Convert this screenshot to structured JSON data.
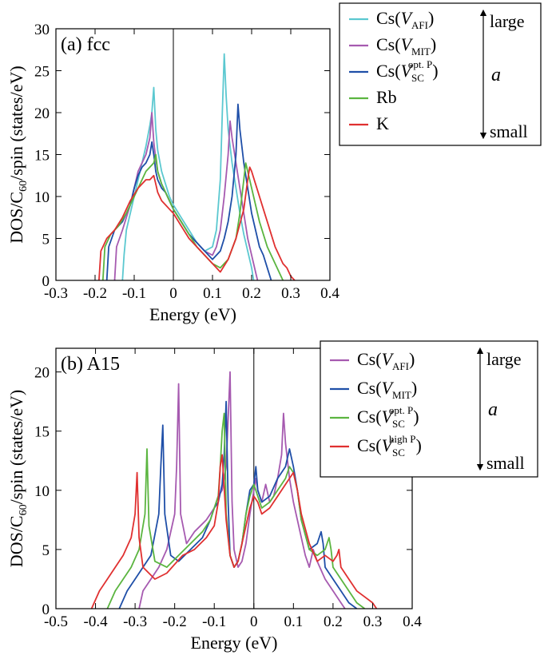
{
  "chart_data": [
    {
      "type": "line",
      "panel_label": "(a) fcc",
      "xlabel": "Energy (eV)",
      "ylabel": "DOS/C60/spin (states/eV)",
      "xlim": [
        -0.3,
        0.4
      ],
      "ylim": [
        0,
        30
      ],
      "x_ticks": [
        "-0.3",
        "-0.2",
        "-0.1",
        "0",
        "0.1",
        "0.2",
        "0.3",
        "0.4"
      ],
      "y_ticks": [
        "0",
        "5",
        "10",
        "15",
        "20",
        "25",
        "30"
      ],
      "legend_position": "top-right",
      "legend_arrow_top": "large",
      "legend_arrow_var": "a",
      "legend_arrow_bottom": "small",
      "series": [
        {
          "name": "Cs(V_AFI)",
          "label_main": "Cs(",
          "label_var": "V",
          "label_sub": "AFI",
          "label_sup": "",
          "label_close": ")",
          "color": "#5bc8d0",
          "x": [
            -0.13,
            -0.126,
            -0.12,
            -0.11,
            -0.1,
            -0.09,
            -0.08,
            -0.07,
            -0.06,
            -0.055,
            -0.05,
            -0.045,
            -0.04,
            -0.03,
            -0.02,
            -0.01,
            0,
            0.02,
            0.04,
            0.06,
            0.08,
            0.1,
            0.11,
            0.12,
            0.125,
            0.13,
            0.135,
            0.14,
            0.15,
            0.16,
            0.17,
            0.18,
            0.19,
            0.2,
            0.205
          ],
          "y": [
            0,
            3,
            6,
            8,
            10,
            12,
            14,
            16,
            18.5,
            20,
            23,
            18,
            15.5,
            13,
            11.5,
            10,
            9,
            7.5,
            6,
            4.5,
            3.5,
            4,
            6,
            12,
            20,
            27,
            22,
            18,
            14,
            11,
            8,
            5.5,
            3.5,
            1.5,
            0
          ]
        },
        {
          "name": "Cs(V_MIT)",
          "label_main": "Cs(",
          "label_var": "V",
          "label_sub": "MIT",
          "label_sup": "",
          "label_close": ")",
          "color": "#a65ab0",
          "x": [
            -0.15,
            -0.145,
            -0.13,
            -0.11,
            -0.1,
            -0.09,
            -0.08,
            -0.07,
            -0.06,
            -0.055,
            -0.05,
            -0.045,
            -0.04,
            -0.03,
            -0.02,
            -0.01,
            0,
            0.02,
            0.04,
            0.06,
            0.08,
            0.1,
            0.11,
            0.12,
            0.13,
            0.14,
            0.145,
            0.15,
            0.16,
            0.17,
            0.18,
            0.19,
            0.2,
            0.21,
            0.215
          ],
          "y": [
            0,
            4,
            6,
            9,
            11,
            13,
            14,
            15,
            17,
            20,
            16.5,
            14.5,
            13,
            11.5,
            10.5,
            9.5,
            8.5,
            7,
            5.5,
            4.5,
            3.5,
            3,
            4,
            6,
            10,
            15,
            19,
            17,
            14,
            11,
            8,
            5,
            3,
            1,
            0
          ]
        },
        {
          "name": "Cs(V_SC^opt.P)",
          "label_main": "Cs(",
          "label_var": "V",
          "label_sub": "SC",
          "label_sup": "opt. P",
          "label_close": ")",
          "color": "#1f4fa8",
          "x": [
            -0.17,
            -0.165,
            -0.15,
            -0.13,
            -0.11,
            -0.1,
            -0.09,
            -0.08,
            -0.07,
            -0.06,
            -0.055,
            -0.05,
            -0.045,
            -0.04,
            -0.03,
            -0.02,
            -0.01,
            0,
            0.02,
            0.04,
            0.06,
            0.08,
            0.1,
            0.12,
            0.13,
            0.14,
            0.15,
            0.16,
            0.165,
            0.17,
            0.18,
            0.19,
            0.2,
            0.21,
            0.22,
            0.23,
            0.24,
            0.25
          ],
          "y": [
            0,
            4,
            6,
            7,
            9,
            11,
            12.5,
            13.5,
            14,
            15,
            16.5,
            15,
            13,
            12,
            11,
            10.5,
            9.5,
            8.5,
            7,
            5.5,
            4.5,
            3.5,
            2.5,
            3.5,
            5,
            7,
            10,
            15,
            21,
            18,
            14,
            11,
            8,
            6,
            4,
            3,
            1.5,
            0
          ]
        },
        {
          "name": "Rb",
          "label_main": "Rb",
          "label_var": "",
          "label_sub": "",
          "label_sup": "",
          "label_close": "",
          "color": "#5bb540",
          "x": [
            -0.18,
            -0.175,
            -0.16,
            -0.14,
            -0.12,
            -0.1,
            -0.08,
            -0.07,
            -0.06,
            -0.05,
            -0.045,
            -0.04,
            -0.03,
            -0.02,
            -0.01,
            0,
            0.02,
            0.04,
            0.06,
            0.08,
            0.1,
            0.12,
            0.14,
            0.16,
            0.17,
            0.18,
            0.185,
            0.19,
            0.2,
            0.21,
            0.22,
            0.23,
            0.24,
            0.25,
            0.26,
            0.27,
            0.28
          ],
          "y": [
            0,
            4,
            5.5,
            6.5,
            8,
            10,
            12,
            13,
            13.5,
            14,
            15,
            13,
            11.5,
            10.5,
            9.5,
            8.5,
            7,
            5.5,
            4,
            3,
            2,
            1.5,
            2.5,
            5,
            8,
            12,
            14,
            13,
            11,
            9,
            7,
            5.5,
            4,
            3,
            2,
            1,
            0
          ]
        },
        {
          "name": "K",
          "label_main": "K",
          "label_var": "",
          "label_sub": "",
          "label_sup": "",
          "label_close": "",
          "color": "#e03030",
          "x": [
            -0.19,
            -0.185,
            -0.17,
            -0.15,
            -0.13,
            -0.11,
            -0.09,
            -0.08,
            -0.07,
            -0.06,
            -0.05,
            -0.045,
            -0.04,
            -0.03,
            -0.02,
            -0.01,
            0,
            0.02,
            0.04,
            0.06,
            0.08,
            0.1,
            0.12,
            0.14,
            0.16,
            0.18,
            0.19,
            0.195,
            0.2,
            0.21,
            0.22,
            0.23,
            0.24,
            0.25,
            0.26,
            0.27,
            0.28,
            0.29,
            0.3,
            0.31
          ],
          "y": [
            0,
            3.5,
            5,
            6,
            7.5,
            9.5,
            11,
            11.5,
            12,
            12,
            12.5,
            11.5,
            10.5,
            9.5,
            9,
            8.5,
            8,
            6.5,
            5,
            4,
            3,
            2,
            1,
            2.5,
            5,
            8.5,
            12,
            13.5,
            13,
            11.5,
            10,
            8.5,
            7,
            5.5,
            4,
            3,
            2,
            1.5,
            0.5,
            0
          ]
        }
      ]
    },
    {
      "type": "line",
      "panel_label": "(b) A15",
      "xlabel": "Energy (eV)",
      "ylabel": "DOS/C60/spin (states/eV)",
      "xlim": [
        -0.5,
        0.4
      ],
      "ylim": [
        0,
        22
      ],
      "x_ticks": [
        "-0.5",
        "-0.4",
        "-0.3",
        "-0.2",
        "-0.1",
        "0",
        "0.1",
        "0.2",
        "0.3",
        "0.4"
      ],
      "y_ticks": [
        "0",
        "5",
        "10",
        "15",
        "20"
      ],
      "legend_position": "top-right",
      "legend_arrow_top": "large",
      "legend_arrow_var": "a",
      "legend_arrow_bottom": "small",
      "series": [
        {
          "name": "Cs(V_AFI)",
          "label_main": "Cs(",
          "label_var": "V",
          "label_sub": "AFI",
          "label_sup": "",
          "label_close": ")",
          "color": "#a65ab0",
          "x": [
            -0.29,
            -0.28,
            -0.26,
            -0.24,
            -0.22,
            -0.2,
            -0.195,
            -0.19,
            -0.185,
            -0.17,
            -0.15,
            -0.12,
            -0.1,
            -0.09,
            -0.08,
            -0.07,
            -0.065,
            -0.06,
            -0.055,
            -0.05,
            -0.04,
            -0.03,
            -0.02,
            -0.01,
            0,
            0.005,
            0.01,
            0.02,
            0.03,
            0.04,
            0.05,
            0.06,
            0.07,
            0.075,
            0.08,
            0.09,
            0.1,
            0.11,
            0.12,
            0.13,
            0.14,
            0.15,
            0.16,
            0.18,
            0.2,
            0.22,
            0.23
          ],
          "y": [
            0,
            1.5,
            2.5,
            3.5,
            5,
            8,
            12,
            19,
            8,
            5.5,
            6.5,
            7.5,
            8.5,
            9.5,
            10,
            12,
            16,
            20,
            9,
            5,
            3.5,
            4,
            5.5,
            8,
            10,
            11,
            10,
            9,
            10.5,
            9,
            9.5,
            11,
            13,
            16.5,
            14,
            11,
            9,
            7.5,
            6,
            4.5,
            3.5,
            5,
            4,
            2.5,
            1.5,
            0.5,
            0
          ]
        },
        {
          "name": "Cs(V_MIT)",
          "label_main": "Cs(",
          "label_var": "V",
          "label_sub": "MIT",
          "label_sup": "",
          "label_close": ")",
          "color": "#1f4fa8",
          "x": [
            -0.34,
            -0.32,
            -0.3,
            -0.28,
            -0.26,
            -0.24,
            -0.235,
            -0.23,
            -0.225,
            -0.21,
            -0.19,
            -0.16,
            -0.13,
            -0.11,
            -0.1,
            -0.09,
            -0.08,
            -0.075,
            -0.07,
            -0.065,
            -0.06,
            -0.05,
            -0.04,
            -0.03,
            -0.02,
            -0.01,
            0,
            0.005,
            0.01,
            0.02,
            0.04,
            0.06,
            0.08,
            0.09,
            0.1,
            0.11,
            0.12,
            0.14,
            0.16,
            0.17,
            0.175,
            0.18,
            0.2,
            0.22,
            0.24,
            0.26
          ],
          "y": [
            0,
            1.5,
            2.5,
            3.5,
            4.5,
            8,
            12,
            15.5,
            8,
            4.5,
            4,
            5,
            6,
            7.5,
            8.5,
            9,
            10.5,
            13,
            17.5,
            9,
            4.5,
            3.5,
            4,
            5.5,
            8,
            10,
            10.5,
            12,
            10,
            9,
            9.5,
            11,
            12,
            13.5,
            12,
            10,
            7.5,
            5,
            5.5,
            6.5,
            5.5,
            3.5,
            2.5,
            1.5,
            0.5,
            0
          ]
        },
        {
          "name": "Cs(V_SC^opt.P)",
          "label_main": "Cs(",
          "label_var": "V",
          "label_sub": "SC",
          "label_sup": "opt. P",
          "label_close": ")",
          "color": "#5bb540",
          "x": [
            -0.37,
            -0.35,
            -0.33,
            -0.31,
            -0.29,
            -0.275,
            -0.27,
            -0.265,
            -0.25,
            -0.22,
            -0.19,
            -0.16,
            -0.13,
            -0.11,
            -0.1,
            -0.09,
            -0.085,
            -0.08,
            -0.075,
            -0.07,
            -0.06,
            -0.05,
            -0.04,
            -0.03,
            -0.02,
            -0.01,
            0,
            0.01,
            0.02,
            0.04,
            0.06,
            0.08,
            0.09,
            0.1,
            0.11,
            0.12,
            0.14,
            0.16,
            0.18,
            0.19,
            0.195,
            0.2,
            0.22,
            0.24,
            0.26,
            0.28
          ],
          "y": [
            0,
            1.5,
            2.5,
            3.5,
            5,
            8,
            13.5,
            7,
            4,
            3.5,
            4.5,
            5.5,
            6.5,
            7.5,
            8.5,
            9.5,
            12,
            15,
            16.5,
            8,
            4.5,
            3.5,
            4,
            5.5,
            8,
            9.5,
            10.5,
            9.5,
            8.5,
            9,
            10,
            11,
            12,
            11.5,
            10,
            7.5,
            5,
            4.5,
            5,
            6,
            5,
            3.5,
            2.5,
            1.5,
            0.5,
            0
          ]
        },
        {
          "name": "Cs(V_SC^highP)",
          "label_main": "Cs(",
          "label_var": "V",
          "label_sub": "SC",
          "label_sup": "high P",
          "label_close": ")",
          "color": "#e03030",
          "x": [
            -0.41,
            -0.39,
            -0.37,
            -0.35,
            -0.33,
            -0.31,
            -0.3,
            -0.295,
            -0.29,
            -0.28,
            -0.25,
            -0.22,
            -0.18,
            -0.15,
            -0.12,
            -0.1,
            -0.09,
            -0.085,
            -0.08,
            -0.07,
            -0.06,
            -0.05,
            -0.04,
            -0.03,
            -0.02,
            -0.01,
            0,
            0.01,
            0.02,
            0.04,
            0.06,
            0.08,
            0.1,
            0.11,
            0.12,
            0.14,
            0.16,
            0.18,
            0.2,
            0.21,
            0.215,
            0.22,
            0.24,
            0.26,
            0.28,
            0.3,
            0.31
          ],
          "y": [
            0,
            1.5,
            2.5,
            3.5,
            4.5,
            6,
            8,
            11.5,
            6,
            3.5,
            2.5,
            3,
            4.5,
            5,
            6,
            7,
            9,
            12,
            13,
            7.5,
            4.5,
            3.5,
            4,
            5.5,
            7,
            8.5,
            9.5,
            9,
            8,
            8.5,
            9.5,
            10.5,
            11.5,
            10,
            8,
            5.5,
            4,
            4.5,
            4,
            4.5,
            5,
            3.5,
            2.5,
            1.5,
            1,
            0.5,
            0
          ]
        }
      ]
    }
  ]
}
